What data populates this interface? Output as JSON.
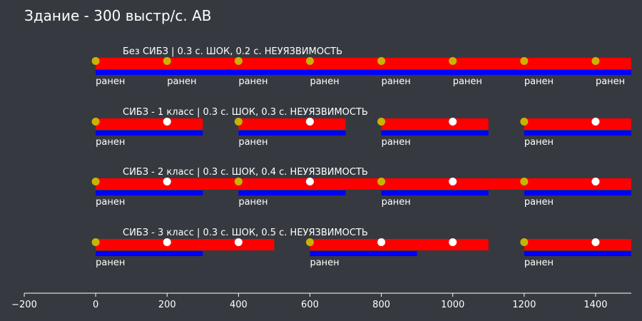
{
  "chart_data": {
    "type": "timeline",
    "title": "Здание - 300 выстр/с. АВ",
    "xlim": [
      -200,
      1500
    ],
    "xticks": [
      -200,
      0,
      200,
      400,
      600,
      800,
      1000,
      1200,
      1400
    ],
    "xtick_labels": [
      "−200",
      "0",
      "200",
      "400",
      "600",
      "800",
      "1000",
      "1200",
      "1400"
    ],
    "hit_label": "ранен",
    "colors": {
      "background": "#363940",
      "shock_bar": "#ff0000",
      "invulnerability_bar": "#0000ff",
      "damaging_hit": "#c8b400",
      "blocked_hit": "#ffffff"
    },
    "rows": [
      {
        "label": "Без СИБЗ | 0.3 с. ШОК, 0.2 с. НЕУЯЗВИМОСТЬ",
        "shock": [
          [
            0,
            1500
          ]
        ],
        "invulnerability": [
          [
            0,
            1500
          ]
        ],
        "damaging_hits": [
          0,
          200,
          400,
          600,
          800,
          1000,
          1200,
          1400
        ],
        "blocked_hits": []
      },
      {
        "label": "СИБЗ - 1 класс | 0.3 с. ШОК, 0.3 с. НЕУЯЗВИМОСТЬ",
        "shock": [
          [
            0,
            300
          ],
          [
            400,
            700
          ],
          [
            800,
            1100
          ],
          [
            1200,
            1500
          ]
        ],
        "invulnerability": [
          [
            0,
            300
          ],
          [
            400,
            700
          ],
          [
            800,
            1100
          ],
          [
            1200,
            1500
          ]
        ],
        "damaging_hits": [
          0,
          400,
          800,
          1200
        ],
        "blocked_hits": [
          200,
          600,
          1000,
          1400
        ]
      },
      {
        "label": "СИБЗ - 2 класс | 0.3 с. ШОК, 0.4 с. НЕУЯЗВИМОСТЬ",
        "shock": [
          [
            0,
            1500
          ]
        ],
        "invulnerability": [
          [
            0,
            300
          ],
          [
            400,
            700
          ],
          [
            800,
            1100
          ],
          [
            1200,
            1500
          ]
        ],
        "damaging_hits": [
          0,
          400,
          800,
          1200
        ],
        "blocked_hits": [
          200,
          600,
          1000,
          1400
        ]
      },
      {
        "label": "СИБЗ - 3 класс | 0.3 с. ШОК, 0.5 с. НЕУЯЗВИМОСТЬ",
        "shock": [
          [
            0,
            500
          ],
          [
            600,
            1100
          ],
          [
            1200,
            1500
          ]
        ],
        "invulnerability": [
          [
            0,
            300
          ],
          [
            600,
            900
          ],
          [
            1200,
            1500
          ]
        ],
        "damaging_hits": [
          0,
          600,
          1200
        ],
        "blocked_hits": [
          200,
          400,
          800,
          1000,
          1400
        ]
      }
    ]
  }
}
